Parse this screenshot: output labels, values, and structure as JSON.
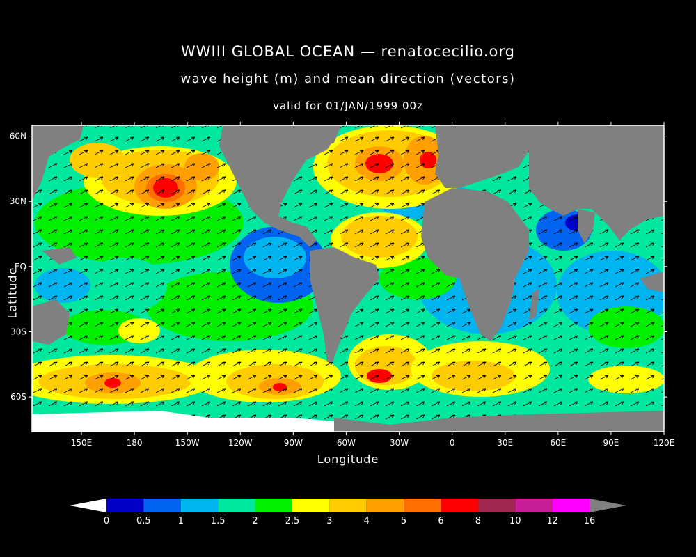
{
  "title": "WWIII GLOBAL OCEAN — renatocecilio.org",
  "subtitle": "wave height (m) and mean direction (vectors)",
  "valid": "valid for 01/JAN/1999 00z",
  "axes": {
    "ylabel": "Latitude",
    "xlabel": "Longitude",
    "lat_ticks": [
      "60N",
      "30N",
      "EQ",
      "30S",
      "60S"
    ],
    "lat_values": [
      60,
      30,
      0,
      -30,
      -60
    ],
    "lon_ticks": [
      "150E",
      "180",
      "150W",
      "120W",
      "90W",
      "60W",
      "30W",
      "0",
      "30E",
      "60E",
      "90E",
      "120E"
    ],
    "lon_values": [
      150,
      180,
      210,
      240,
      270,
      300,
      330,
      360,
      390,
      420,
      450,
      480
    ],
    "lon_range": [
      122,
      480
    ],
    "lat_range": [
      -76,
      65
    ]
  },
  "colorbar": {
    "labels": [
      "0",
      "0.5",
      "1",
      "1.5",
      "2",
      "2.5",
      "3",
      "4",
      "5",
      "6",
      "8",
      "10",
      "12",
      "16"
    ],
    "colors": [
      "#ffffff",
      "#0000c8",
      "#0064f0",
      "#00b4f0",
      "#00e8a0",
      "#00f000",
      "#ffff00",
      "#ffcc00",
      "#ffa000",
      "#ff6e00",
      "#ff0000",
      "#a02850",
      "#c81e96",
      "#ff00ff",
      "#808080"
    ]
  },
  "colors": {
    "land": "#808080",
    "ice": "#ffffff",
    "background": "#000000",
    "vectors": "#000000"
  }
}
